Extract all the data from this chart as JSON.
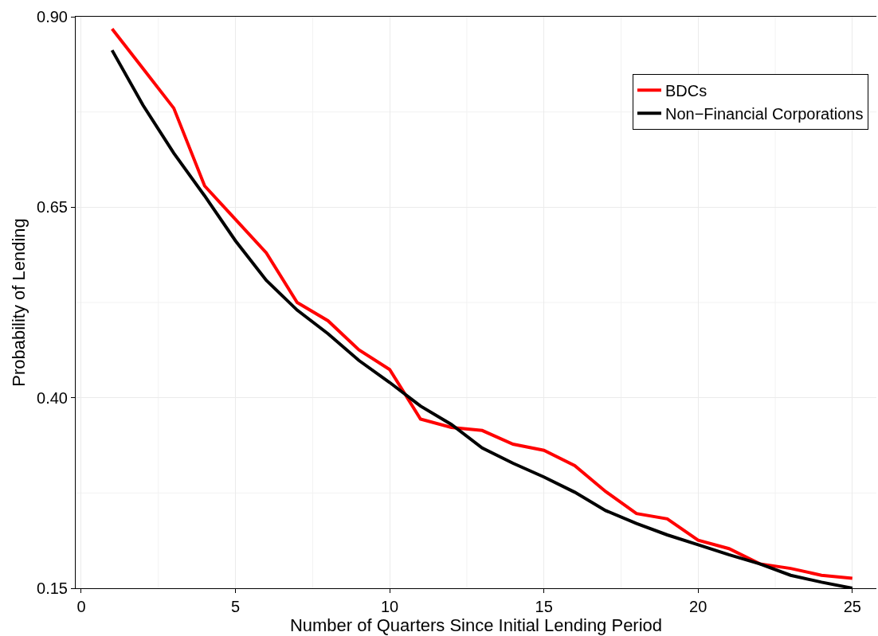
{
  "chart_data": {
    "type": "line",
    "xlabel": "Number of Quarters Since Initial Lending Period",
    "ylabel": "Probability of Lending",
    "x": [
      1,
      2,
      3,
      4,
      5,
      6,
      7,
      8,
      9,
      10,
      11,
      12,
      13,
      14,
      15,
      16,
      17,
      18,
      19,
      20,
      21,
      22,
      23,
      24,
      25
    ],
    "series": [
      {
        "name": "BDCs",
        "color": "#ff0000",
        "values": [
          0.884,
          0.832,
          0.78,
          0.678,
          0.634,
          0.59,
          0.525,
          0.501,
          0.463,
          0.437,
          0.372,
          0.361,
          0.357,
          0.339,
          0.331,
          0.311,
          0.277,
          0.248,
          0.241,
          0.213,
          0.202,
          0.182,
          0.176,
          0.167,
          0.163
        ]
      },
      {
        "name": "Non−Financial Corporations",
        "color": "#000000",
        "values": [
          0.856,
          0.784,
          0.721,
          0.665,
          0.606,
          0.554,
          0.515,
          0.484,
          0.449,
          0.42,
          0.389,
          0.365,
          0.334,
          0.314,
          0.296,
          0.276,
          0.252,
          0.235,
          0.22,
          0.207,
          0.194,
          0.182,
          0.167,
          0.158,
          0.15
        ]
      }
    ],
    "xlim": [
      -0.18,
      25.78
    ],
    "xticks": [
      0,
      5,
      10,
      15,
      20,
      25
    ],
    "ylim": [
      0.15,
      0.9
    ],
    "yticks": [
      {
        "value": 0.15,
        "label": "0.15"
      },
      {
        "value": 0.4,
        "label": "0.40"
      },
      {
        "value": 0.65,
        "label": "0.65"
      },
      {
        "value": 0.9,
        "label": "0.90"
      }
    ],
    "grid": true,
    "legend": "top right",
    "line_style": "solid",
    "marker": "none"
  }
}
